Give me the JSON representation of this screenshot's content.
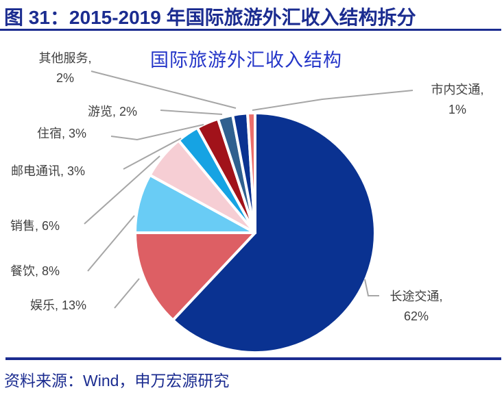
{
  "header": {
    "title": "图 31：2015-2019 年国际旅游外汇收入结构拆分"
  },
  "footer": {
    "source_label": "资料来源：Wind，申万宏源研究"
  },
  "colors": {
    "accent_navy": "#1B2C90",
    "chart_title_blue": "#2435C8",
    "label_gray": "#3F3F3F",
    "leader_gray": "#A6A6A6",
    "slice_border_white": "#FFFFFF"
  },
  "chart_data": {
    "type": "pie",
    "title": "国际旅游外汇收入结构",
    "unit": "%",
    "start_angle_deg": 0,
    "direction": "clockwise",
    "legend": "none",
    "data_label_style": "category and percent outside slices with gray leader lines",
    "categories": [
      "长途交通",
      "娱乐",
      "餐饮",
      "销售",
      "邮电通讯",
      "住宿",
      "游览",
      "其他服务",
      "市内交通"
    ],
    "values": [
      62,
      13,
      8,
      6,
      3,
      3,
      2,
      2,
      1
    ],
    "slice_ids": [
      "long-distance-transport",
      "entertainment",
      "catering",
      "sales",
      "post-telecom",
      "accommodation",
      "sightseeing",
      "other-services",
      "city-transport"
    ],
    "slice_colors": [
      "#0A3291",
      "#DD5F64",
      "#69CCF5",
      "#F6CED4",
      "#16A3E3",
      "#A1121A",
      "#2F608F",
      "#0A3291",
      "#EC6E6B"
    ],
    "labels": [
      "长途交通,\n62%",
      "娱乐, 13%",
      "餐饮, 8%",
      "销售, 6%",
      "邮电通讯, 3%",
      "住宿, 3%",
      "游览, 2%",
      "其他服务,\n2%",
      "市内交通,\n1%"
    ],
    "leader_line_color": "#A6A6A6",
    "label_color": "#3F3F3F"
  }
}
